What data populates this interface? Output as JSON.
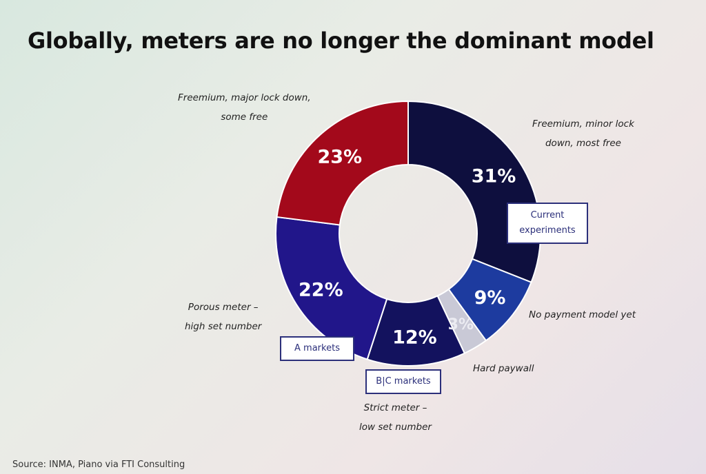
{
  "title": "Globally, meters are no longer the dominant model",
  "source": "Source: INMA, Piano via FTI Consulting",
  "chart_data": {
    "type": "pie",
    "donut": true,
    "slices": [
      {
        "label": "Freemium, minor lock down, most free",
        "value": 31,
        "display": "31%",
        "color": "#0e0f3e"
      },
      {
        "label": "No payment model yet",
        "value": 9,
        "display": "9%",
        "color": "#1d3b9f"
      },
      {
        "label": "Hard paywall",
        "value": 3,
        "display": "3%",
        "color": "#c9c9d6"
      },
      {
        "label": "Strict meter – low set number",
        "value": 12,
        "display": "12%",
        "color": "#13125e"
      },
      {
        "label": "Porous meter – high set number",
        "value": 22,
        "display": "22%",
        "color": "#21168a"
      },
      {
        "label": "Freemium, major lock down, some free",
        "value": 23,
        "display": "23%",
        "color": "#a3091b"
      }
    ],
    "callouts": [
      "Current experiments",
      "A markets",
      "B|C markets"
    ]
  },
  "labels": {
    "freemium_minor": "Freemium, minor lock\ndown, most free",
    "no_payment": "No payment model yet",
    "hard_paywall": "Hard paywall",
    "strict_meter": "Strict meter –\nlow set number",
    "porous_meter": "Porous meter –\nhigh set number",
    "freemium_major": "Freemium, major lock down,\nsome free"
  },
  "boxes": {
    "current": "Current\nexperiments",
    "a_markets": "A markets",
    "bc_markets": "B|C markets"
  }
}
